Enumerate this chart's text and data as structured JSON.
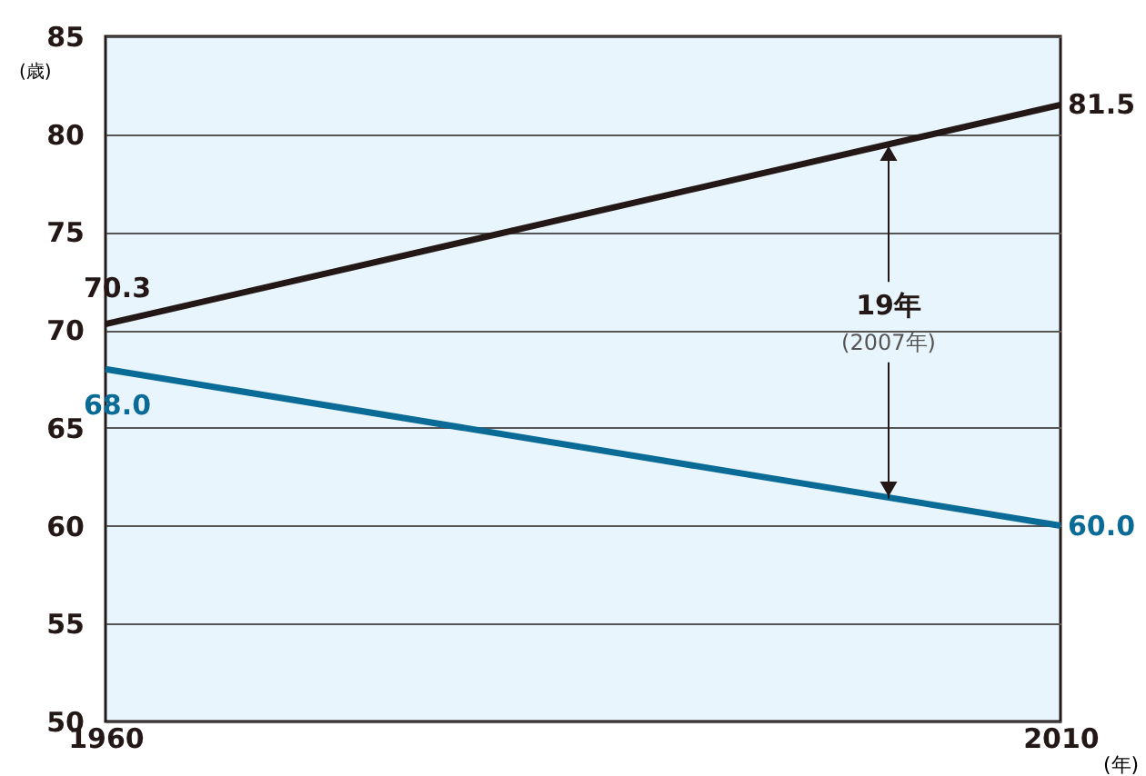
{
  "chart_data": {
    "type": "line",
    "x": [
      1960,
      2010
    ],
    "xlim": [
      1960,
      2010
    ],
    "xticks": [
      1960,
      2010
    ],
    "xlabel": "(年)",
    "ylabel": "(歳)",
    "ylim": [
      50,
      85
    ],
    "yticks": [
      50,
      55,
      60,
      65,
      70,
      75,
      80,
      85
    ],
    "grid": "y",
    "marker": "none",
    "line_style": "solid",
    "series": [
      {
        "color": "#231815",
        "values": [
          70.3,
          81.5
        ],
        "value_labels": [
          "70.3",
          "81.5"
        ]
      },
      {
        "color": "#0a6b96",
        "values": [
          68.0,
          60.0
        ],
        "value_labels": [
          "68.0",
          "60.0"
        ]
      }
    ],
    "annotations": [
      {
        "text": "19年",
        "x": 2001,
        "y": 79.5
      },
      {
        "text": "(2007年)",
        "x": 2001,
        "y": 61.4
      }
    ]
  }
}
